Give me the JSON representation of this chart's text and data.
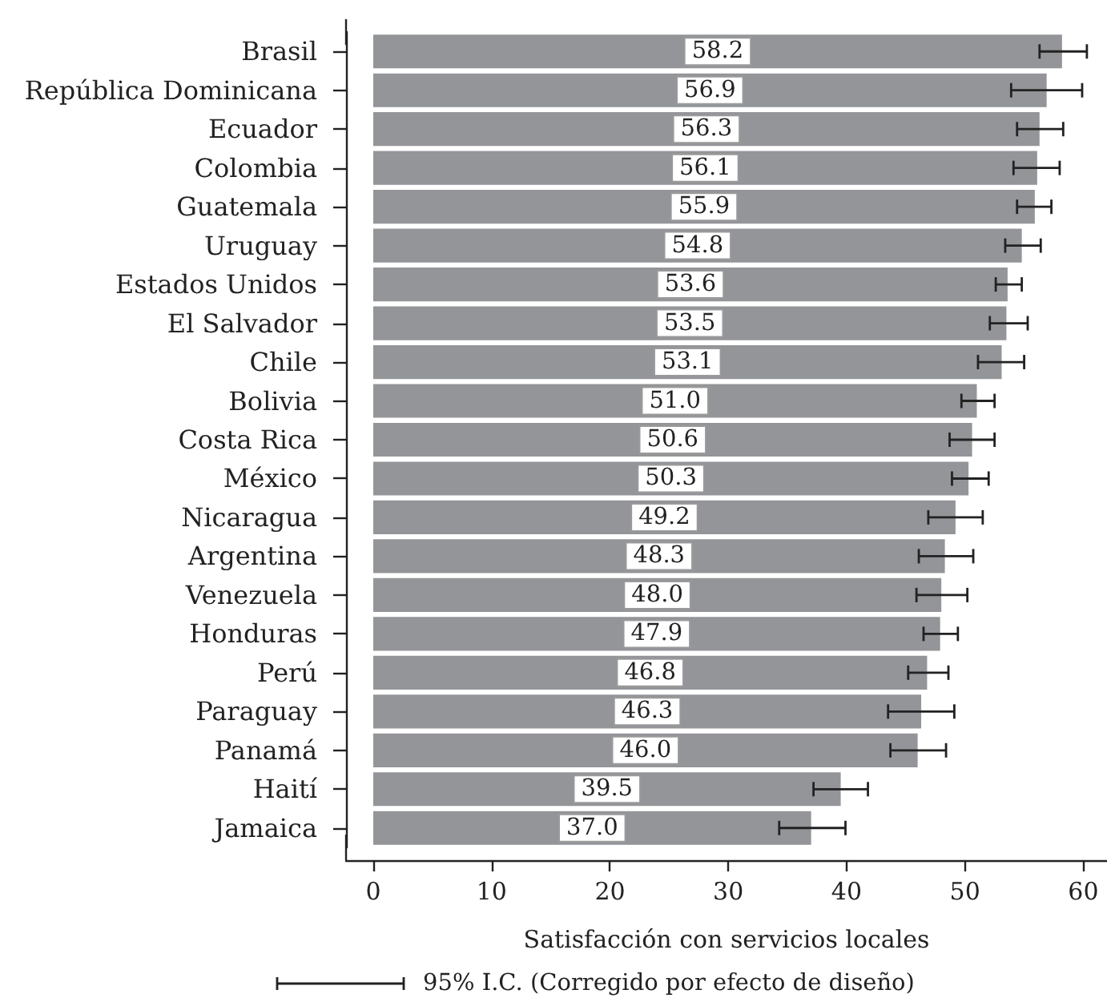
{
  "chart_data": {
    "type": "bar",
    "orientation": "horizontal",
    "categories": [
      "Brasil",
      "República Dominicana",
      "Ecuador",
      "Colombia",
      "Guatemala",
      "Uruguay",
      "Estados Unidos",
      "El Salvador",
      "Chile",
      "Bolivia",
      "Costa Rica",
      "México",
      "Nicaragua",
      "Argentina",
      "Venezuela",
      "Honduras",
      "Perú",
      "Paraguay",
      "Panamá",
      "Haití",
      "Jamaica"
    ],
    "values": [
      58.2,
      56.9,
      56.3,
      56.1,
      55.9,
      54.8,
      53.6,
      53.5,
      53.1,
      51.0,
      50.6,
      50.3,
      49.2,
      48.3,
      48.0,
      47.9,
      46.8,
      46.3,
      46.0,
      39.5,
      37.0
    ],
    "value_labels": [
      "58.2",
      "56.9",
      "56.3",
      "56.1",
      "55.9",
      "54.8",
      "53.6",
      "53.5",
      "53.1",
      "51.0",
      "50.6",
      "50.3",
      "49.2",
      "48.3",
      "48.0",
      "47.9",
      "46.8",
      "46.3",
      "46.0",
      "39.5",
      "37.0"
    ],
    "errors": [
      [
        56.3,
        60.3
      ],
      [
        53.9,
        59.9
      ],
      [
        54.4,
        58.3
      ],
      [
        54.1,
        58.0
      ],
      [
        54.4,
        57.3
      ],
      [
        53.4,
        56.4
      ],
      [
        52.6,
        54.8
      ],
      [
        52.1,
        55.3
      ],
      [
        51.1,
        55.0
      ],
      [
        49.7,
        52.5
      ],
      [
        48.7,
        52.5
      ],
      [
        48.9,
        52.0
      ],
      [
        46.9,
        51.5
      ],
      [
        46.1,
        50.7
      ],
      [
        45.9,
        50.2
      ],
      [
        46.5,
        49.4
      ],
      [
        45.2,
        48.6
      ],
      [
        43.5,
        49.1
      ],
      [
        43.7,
        48.4
      ],
      [
        37.2,
        41.8
      ],
      [
        34.3,
        39.9
      ]
    ],
    "color": "#939598",
    "xlim": [
      -2.3,
      62
    ],
    "xticks": [
      0,
      10,
      20,
      30,
      40,
      50,
      60
    ],
    "xlabel": "Satisfacción con servicios locales",
    "annotations": [
      "95% I.C. (Corregido por efecto de diseño)"
    ]
  }
}
